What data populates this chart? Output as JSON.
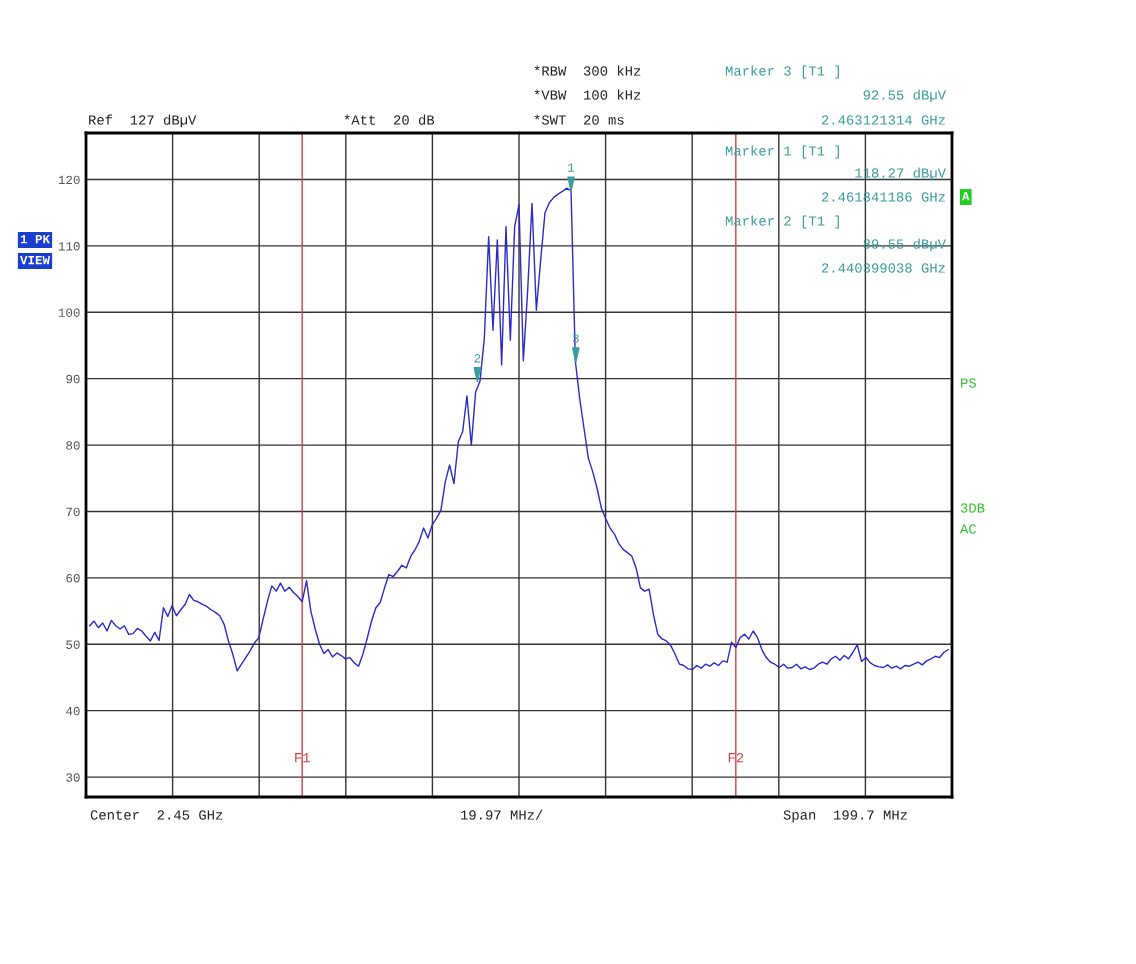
{
  "chart_data": {
    "type": "line",
    "categories": [
      null,
      null,
      null,
      null,
      null,
      null,
      null,
      null,
      null,
      null,
      null,
      null,
      null,
      null,
      null,
      null,
      null,
      null,
      null,
      null,
      null,
      null,
      null,
      null,
      null,
      null,
      null,
      null,
      null,
      null,
      null,
      null,
      null,
      null,
      null,
      null,
      null,
      null,
      null,
      null,
      null,
      null,
      null,
      null,
      null,
      null,
      null,
      null,
      null,
      null,
      null,
      null,
      null,
      null,
      null,
      null,
      null,
      null,
      null,
      null,
      null,
      null,
      null,
      null,
      null,
      null,
      null,
      null,
      null,
      null,
      null,
      null,
      null,
      null,
      null,
      null,
      null,
      null,
      null,
      null,
      null,
      null,
      null,
      null,
      null,
      null,
      null,
      null,
      null,
      null,
      null,
      null,
      null,
      null,
      null,
      null,
      null,
      null,
      null,
      null,
      null,
      null,
      null,
      null,
      null,
      null,
      null,
      null,
      null,
      null,
      null,
      null,
      null,
      null,
      null,
      null,
      null,
      null,
      null,
      null,
      null,
      null,
      null,
      null,
      null,
      null,
      null,
      null,
      null,
      null,
      null,
      null,
      null,
      null,
      null,
      null,
      null,
      null,
      null,
      null,
      null,
      null,
      null,
      null,
      null,
      null,
      null,
      null,
      null,
      null,
      null,
      null,
      null,
      null,
      null,
      null,
      null,
      null,
      null,
      null,
      null,
      null,
      null,
      null,
      null,
      null,
      null,
      null,
      null,
      null,
      null,
      null,
      null,
      null,
      null,
      null,
      null,
      null,
      null,
      null,
      null,
      null,
      null,
      null,
      null,
      null,
      null,
      null,
      null,
      null,
      null,
      null,
      null,
      null,
      null,
      null,
      null,
      null,
      null
    ],
    "series": [
      {
        "color": "#2a2acc",
        "values": [
          52.8,
          53.5,
          52.5,
          53.2,
          52.0,
          53.6,
          52.8,
          52.3,
          52.8,
          51.5,
          51.6,
          52.4,
          52.0,
          51.2,
          50.5,
          51.8,
          50.6,
          55.5,
          54.2,
          55.8,
          54.3,
          55.2,
          56.0,
          57.5,
          56.6,
          56.4,
          56.0,
          55.7,
          55.2,
          54.8,
          54.3,
          53.0,
          50.5,
          48.5,
          46.0,
          47.0,
          48.0,
          49.0,
          50.2,
          51.0,
          53.8,
          56.5,
          58.8,
          58.0,
          59.2,
          58.0,
          58.6,
          57.8,
          57.2,
          56.4,
          59.6,
          55.0,
          52.3,
          50.0,
          48.6,
          49.2,
          48.1,
          48.7,
          48.3,
          47.8,
          48.0,
          47.2,
          46.7,
          48.5,
          50.9,
          53.5,
          55.5,
          56.3,
          58.5,
          60.5,
          60.2,
          61.0,
          61.9,
          61.5,
          63.2,
          64.2,
          65.5,
          67.5,
          66.0,
          68.0,
          69.0,
          70.2,
          74.5,
          77.0,
          74.2,
          80.5,
          82.0,
          87.4,
          80.0,
          88.0,
          89.6,
          96.0,
          111.4,
          97.3,
          110.9,
          92.1,
          112.9,
          95.8,
          112.9,
          116.2,
          92.7,
          103.3,
          116.4,
          100.3,
          107.9,
          115.0,
          116.5,
          117.3,
          117.8,
          118.2,
          118.7,
          118.3,
          92.6,
          87.0,
          82.5,
          78.0,
          76.0,
          73.5,
          70.5,
          68.9,
          67.5,
          66.6,
          65.2,
          64.3,
          63.8,
          63.3,
          61.5,
          58.5,
          58.0,
          58.3,
          54.5,
          51.5,
          50.8,
          50.5,
          49.8,
          48.5,
          47.0,
          46.8,
          46.3,
          46.2,
          46.8,
          46.4,
          47.0,
          46.7,
          47.2,
          46.8,
          47.5,
          47.3,
          50.3,
          49.5,
          51.0,
          51.5,
          50.8,
          52.0,
          51.0,
          49.2,
          48.0,
          47.3,
          47.0,
          46.5,
          47.0,
          46.4,
          46.5,
          47.0,
          46.3,
          46.6,
          46.2,
          46.4,
          47.0,
          47.3,
          47.0,
          47.8,
          48.2,
          47.6,
          48.3,
          47.8,
          48.8,
          49.9,
          47.4,
          48.0,
          47.2,
          46.8,
          46.6,
          46.5,
          46.9,
          46.4,
          46.7,
          46.3,
          46.8,
          46.7,
          47.0,
          47.3,
          46.9,
          47.5,
          47.8,
          48.2,
          48.0,
          48.8,
          49.2
        ]
      }
    ],
    "ylim": [
      27,
      127
    ],
    "yticks": [
      30,
      40,
      50,
      60,
      70,
      80,
      90,
      100,
      110,
      120
    ],
    "grid": true,
    "legend": false,
    "marker": "none",
    "line_style": "solid",
    "annotations": [
      "Ref  127 dBµV",
      "*Att  20 dB",
      "*RBW  300 kHz",
      "*VBW  100 kHz",
      "*SWT  20 ms",
      "Marker 3 [T1 ]",
      "92.55 dBµV",
      "2.463121314 GHz",
      "Marker 1 [T1 ]",
      "118.27 dBµV",
      "2.461841186 GHz",
      "Marker 2 [T1 ]",
      "89.55 dBµV",
      "2.440399038 GHz",
      "1 PK",
      "VIEW",
      "A",
      "PS",
      "3DB",
      "AC",
      "Center  2.45 GHz",
      "19.97 MHz/",
      "Span  199.7 MHz",
      "F1",
      "F2",
      {
        "text": "1",
        "y": 118.27
      },
      {
        "text": "2",
        "y": 89.55
      },
      {
        "text": "3",
        "y": 92.55
      }
    ]
  }
}
